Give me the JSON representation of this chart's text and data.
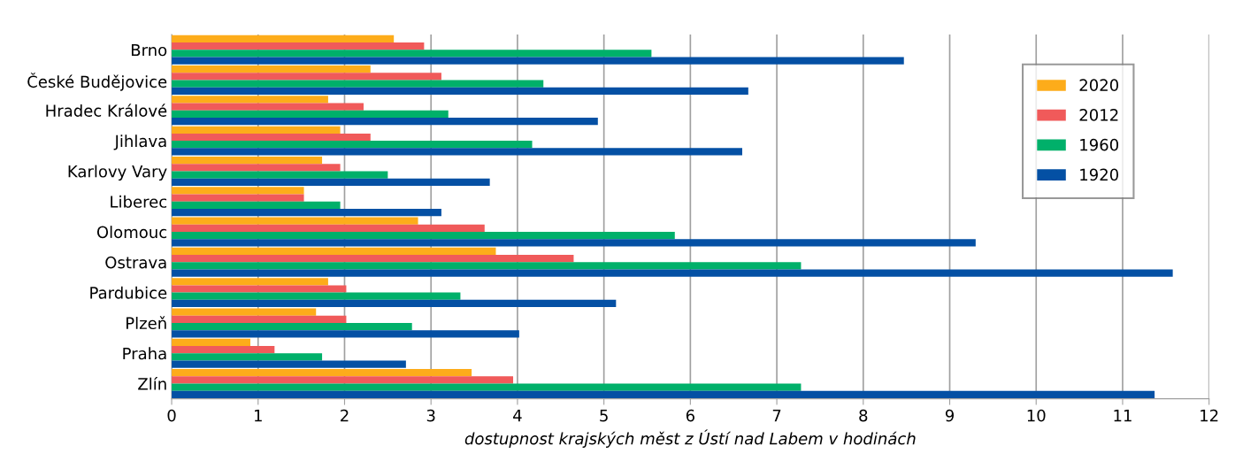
{
  "chart_data": {
    "type": "bar",
    "orientation": "horizontal",
    "categories": [
      "Brno",
      "České Budějovice",
      "Hradec Králové",
      "Jihlava",
      "Karlovy Vary",
      "Liberec",
      "Olomouc",
      "Ostrava",
      "Pardubice",
      "Plzeň",
      "Praha",
      "Zlín"
    ],
    "series": [
      {
        "name": "2020",
        "color": "#fdac1a",
        "values": [
          2.57,
          2.3,
          1.81,
          1.95,
          1.74,
          1.53,
          2.85,
          3.75,
          1.81,
          1.67,
          0.91,
          3.47
        ]
      },
      {
        "name": "2012",
        "color": "#f05a5a",
        "values": [
          2.92,
          3.12,
          2.22,
          2.3,
          1.95,
          1.53,
          3.62,
          4.65,
          2.02,
          2.02,
          1.19,
          3.95
        ]
      },
      {
        "name": "1960",
        "color": "#00b06a",
        "values": [
          5.55,
          4.3,
          3.2,
          4.17,
          2.5,
          1.95,
          5.82,
          7.28,
          3.34,
          2.78,
          1.74,
          7.28
        ]
      },
      {
        "name": "1920",
        "color": "#0450a4",
        "values": [
          8.47,
          6.67,
          4.93,
          6.6,
          3.68,
          3.12,
          9.3,
          11.58,
          5.14,
          4.02,
          2.71,
          11.37
        ]
      }
    ],
    "xlabel": "dostupnost krajských měst z Ústí nad Labem v hodinách",
    "xlim": [
      0,
      12
    ],
    "xticks": [
      0,
      1,
      2,
      3,
      4,
      5,
      6,
      7,
      8,
      9,
      10,
      11,
      12
    ],
    "grid": "x",
    "legend": "top right"
  }
}
